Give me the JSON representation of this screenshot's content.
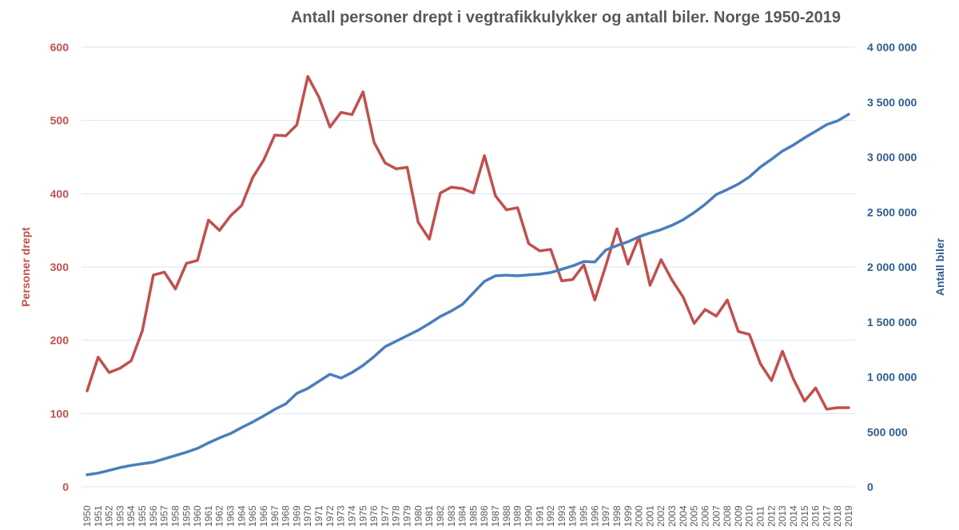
{
  "chart_data": {
    "type": "line",
    "title": "Antall personer drept i vegtrafikkulykker og antall biler. Norge 1950-2019",
    "xlabel": "",
    "ylabel_left": "Personer drept",
    "ylabel_right": "Antall biler",
    "ylim_left": [
      0,
      600
    ],
    "ylim_right": [
      0,
      4000000
    ],
    "yticks_left": [
      "0",
      "100",
      "200",
      "300",
      "400",
      "500",
      "600"
    ],
    "yticks_left_values": [
      0,
      100,
      200,
      300,
      400,
      500,
      600
    ],
    "yticks_right": [
      "0",
      "500 000",
      "1 000 000",
      "1 500 000",
      "2 000 000",
      "2 500 000",
      "3 000 000",
      "3 500 000",
      "4 000 000"
    ],
    "yticks_right_values": [
      0,
      500000,
      1000000,
      1500000,
      2000000,
      2500000,
      3000000,
      3500000,
      4000000
    ],
    "grid": true,
    "legend": "none",
    "x": [
      1950,
      1951,
      1952,
      1953,
      1954,
      1955,
      1956,
      1957,
      1958,
      1959,
      1960,
      1961,
      1962,
      1963,
      1964,
      1965,
      1966,
      1967,
      1968,
      1969,
      1970,
      1971,
      1972,
      1973,
      1974,
      1975,
      1976,
      1977,
      1978,
      1979,
      1980,
      1981,
      1982,
      1983,
      1984,
      1985,
      1986,
      1987,
      1988,
      1989,
      1990,
      1991,
      1992,
      1993,
      1994,
      1995,
      1996,
      1997,
      1998,
      1999,
      2000,
      2001,
      2002,
      2003,
      2004,
      2005,
      2006,
      2007,
      2008,
      2009,
      2010,
      2011,
      2012,
      2013,
      2014,
      2015,
      2016,
      2017,
      2018,
      2019
    ],
    "series": [
      {
        "name": "Personer drept",
        "axis": "left",
        "color": "#c0504d",
        "values": [
          131,
          177,
          156,
          162,
          172,
          213,
          289,
          293,
          270,
          305,
          309,
          364,
          350,
          370,
          384,
          422,
          446,
          480,
          479,
          494,
          560,
          532,
          491,
          511,
          508,
          539,
          470,
          442,
          434,
          436,
          361,
          338,
          401,
          409,
          407,
          401,
          452,
          397,
          378,
          381,
          332,
          322,
          324,
          281,
          283,
          303,
          255,
          302,
          352,
          304,
          341,
          275,
          310,
          282,
          259,
          223,
          242,
          233,
          255,
          212,
          208,
          168,
          145,
          185,
          147,
          117,
          135,
          106,
          108,
          108
        ]
      },
      {
        "name": "Antall biler",
        "axis": "right",
        "color": "#4a7ebb",
        "values": [
          110000,
          125000,
          150000,
          175000,
          195000,
          210000,
          225000,
          255000,
          285000,
          315000,
          350000,
          400000,
          445000,
          485000,
          540000,
          590000,
          645000,
          705000,
          755000,
          850000,
          895000,
          960000,
          1025000,
          990000,
          1040000,
          1105000,
          1185000,
          1275000,
          1325000,
          1375000,
          1425000,
          1485000,
          1550000,
          1600000,
          1660000,
          1765000,
          1870000,
          1920000,
          1925000,
          1920000,
          1928000,
          1935000,
          1950000,
          1980000,
          2010000,
          2050000,
          2045000,
          2155000,
          2195000,
          2230000,
          2275000,
          2310000,
          2340000,
          2380000,
          2430000,
          2495000,
          2570000,
          2660000,
          2705000,
          2755000,
          2820000,
          2910000,
          2980000,
          3055000,
          3110000,
          3175000,
          3235000,
          3295000,
          3330000,
          3390000
        ]
      }
    ]
  }
}
